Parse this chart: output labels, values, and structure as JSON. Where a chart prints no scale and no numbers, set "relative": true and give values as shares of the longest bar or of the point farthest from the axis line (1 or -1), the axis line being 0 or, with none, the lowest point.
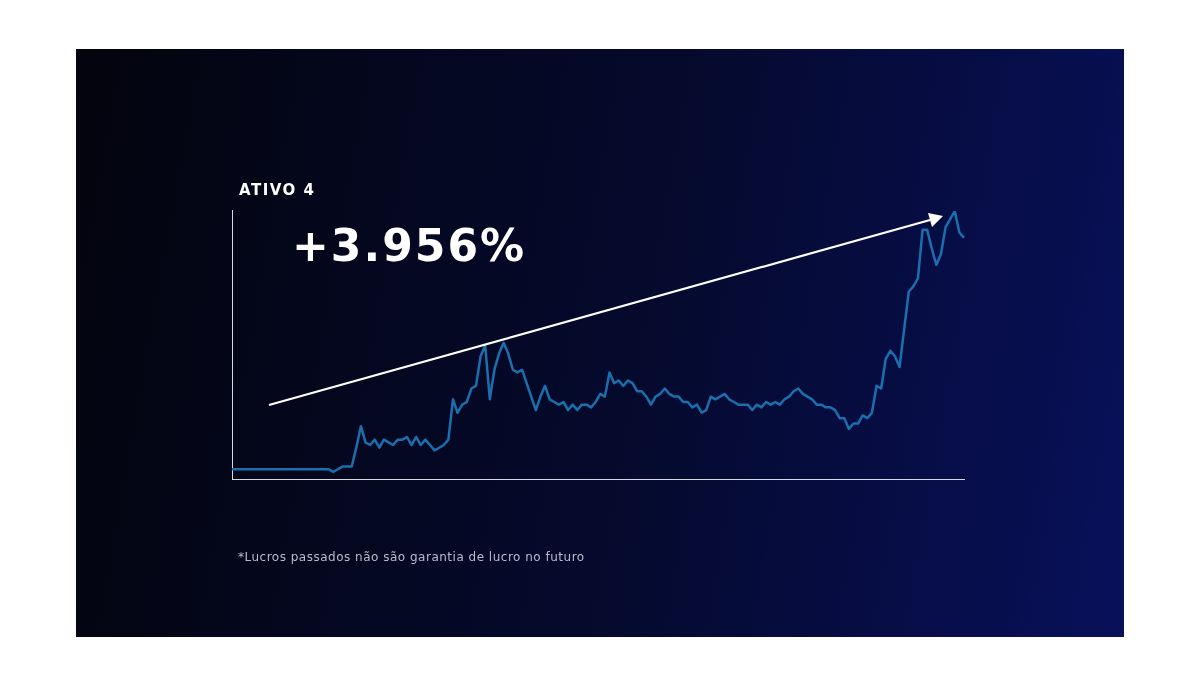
{
  "chart_data": {
    "type": "line",
    "title": "ATIVO 4",
    "relative": true,
    "grid": false,
    "annotations": [
      "+3.956%",
      "*Lucros passados não são garantia de lucro no futuro"
    ],
    "categories": [
      null,
      null,
      null,
      null,
      null,
      null,
      null,
      null,
      null,
      null,
      null,
      null,
      null,
      null,
      null,
      null,
      null,
      null,
      null,
      null,
      null,
      null,
      null,
      null,
      null,
      null,
      null,
      null,
      null,
      null,
      null,
      null,
      null,
      null,
      null,
      null,
      null,
      null,
      null,
      null,
      null,
      null,
      null,
      null,
      null,
      null,
      null,
      null,
      null,
      null,
      null,
      null,
      null,
      null,
      null,
      null,
      null,
      null,
      null,
      null,
      null,
      null,
      null,
      null,
      null,
      null,
      null,
      null,
      null,
      null,
      null,
      null,
      null,
      null,
      null,
      null,
      null,
      null,
      null,
      null,
      null,
      null,
      null,
      null,
      null,
      null,
      null,
      null,
      null,
      null,
      null,
      null,
      null,
      null,
      null,
      null,
      null,
      null,
      null,
      null,
      null,
      null,
      null,
      null,
      null,
      null,
      null,
      null,
      null,
      null,
      null,
      null,
      null,
      null,
      null,
      null,
      null,
      null,
      null,
      null,
      null,
      null,
      null,
      null,
      null,
      null,
      null,
      null,
      null,
      null,
      null,
      null,
      null,
      null,
      null,
      null,
      null,
      null,
      null,
      null,
      null,
      null,
      null,
      null,
      null,
      null,
      null,
      null,
      null,
      null,
      null,
      null,
      null,
      null,
      null,
      null,
      null,
      null,
      null,
      null
    ],
    "series": [
      {
        "color": "#1a6fae",
        "values": [
          0.04,
          0.04,
          0.04,
          0.04,
          0.04,
          0.04,
          0.04,
          0.04,
          0.04,
          0.04,
          0.04,
          0.04,
          0.04,
          0.04,
          0.04,
          0.04,
          0.04,
          0.04,
          0.04,
          0.04,
          0.04,
          0.04,
          0.03,
          0.04,
          0.05,
          0.05,
          0.05,
          0.12,
          0.2,
          0.14,
          0.13,
          0.15,
          0.12,
          0.15,
          0.14,
          0.13,
          0.15,
          0.15,
          0.16,
          0.13,
          0.16,
          0.13,
          0.15,
          0.13,
          0.11,
          0.12,
          0.13,
          0.15,
          0.3,
          0.25,
          0.28,
          0.29,
          0.34,
          0.35,
          0.46,
          0.5,
          0.3,
          0.41,
          0.47,
          0.51,
          0.47,
          0.41,
          0.4,
          0.41,
          0.36,
          0.31,
          0.26,
          0.31,
          0.35,
          0.3,
          0.29,
          0.28,
          0.29,
          0.26,
          0.28,
          0.26,
          0.28,
          0.28,
          0.27,
          0.29,
          0.32,
          0.31,
          0.4,
          0.36,
          0.37,
          0.35,
          0.37,
          0.36,
          0.33,
          0.33,
          0.31,
          0.28,
          0.31,
          0.32,
          0.34,
          0.32,
          0.31,
          0.31,
          0.29,
          0.29,
          0.27,
          0.28,
          0.25,
          0.26,
          0.31,
          0.3,
          0.31,
          0.32,
          0.3,
          0.29,
          0.28,
          0.28,
          0.28,
          0.26,
          0.28,
          0.27,
          0.29,
          0.28,
          0.29,
          0.28,
          0.3,
          0.31,
          0.33,
          0.34,
          0.32,
          0.31,
          0.3,
          0.28,
          0.28,
          0.27,
          0.27,
          0.26,
          0.23,
          0.23,
          0.19,
          0.21,
          0.21,
          0.24,
          0.23,
          0.25,
          0.35,
          0.34,
          0.45,
          0.48,
          0.46,
          0.42,
          0.56,
          0.7,
          0.72,
          0.75,
          0.93,
          0.93,
          0.86,
          0.8,
          0.84,
          0.94,
          0.97,
          1,
          0.92,
          0.9
        ]
      }
    ]
  }
}
